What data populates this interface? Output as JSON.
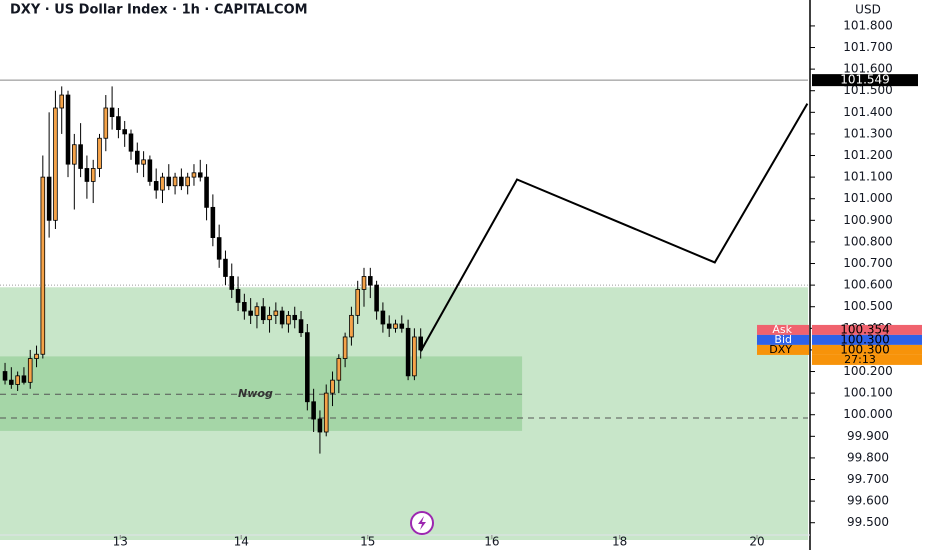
{
  "chart_data": {
    "type": "candlestick",
    "title": "DXY · US Dollar Index · 1h · CAPITALCOM",
    "currency": "USD",
    "up_color": "#f5a349",
    "down_color": "#000000",
    "x": [
      0,
      1,
      2,
      3,
      4,
      5,
      6,
      7,
      8,
      9,
      10,
      11,
      12,
      13,
      14,
      15,
      16,
      17,
      18,
      19,
      20,
      21,
      22,
      23,
      24,
      25,
      26,
      27,
      28,
      29,
      30,
      31,
      32,
      33,
      34,
      35,
      36,
      37,
      38,
      39,
      40,
      41,
      42,
      43,
      44,
      45,
      46,
      47,
      48,
      49,
      50,
      51,
      52,
      53,
      54,
      55,
      56,
      57,
      58,
      59,
      60,
      61,
      62,
      63,
      64,
      65,
      66
    ],
    "open": [
      100.2,
      100.16,
      100.14,
      100.18,
      100.15,
      100.26,
      100.28,
      101.1,
      100.9,
      101.42,
      101.48,
      101.16,
      101.25,
      101.14,
      101.08,
      101.14,
      101.28,
      101.42,
      101.38,
      101.32,
      101.3,
      101.22,
      101.16,
      101.18,
      101.08,
      101.04,
      101.1,
      101.06,
      101.1,
      101.06,
      101.1,
      101.12,
      101.1,
      100.96,
      100.82,
      100.72,
      100.64,
      100.58,
      100.52,
      100.48,
      100.46,
      100.5,
      100.44,
      100.46,
      100.48,
      100.42,
      100.46,
      100.44,
      100.38,
      100.06,
      99.98,
      99.92,
      100.1,
      100.16,
      100.26,
      100.36,
      100.46,
      100.58,
      100.64,
      100.6,
      100.48,
      100.42,
      100.4,
      100.42,
      100.4,
      100.18,
      100.36
    ],
    "high": [
      100.24,
      100.22,
      100.2,
      100.22,
      100.3,
      100.32,
      101.2,
      101.4,
      101.5,
      101.52,
      101.5,
      101.3,
      101.35,
      101.2,
      101.18,
      101.3,
      101.48,
      101.52,
      101.42,
      101.36,
      101.32,
      101.26,
      101.22,
      101.2,
      101.14,
      101.12,
      101.16,
      101.12,
      101.14,
      101.12,
      101.16,
      101.18,
      101.16,
      101.02,
      100.88,
      100.76,
      100.7,
      100.64,
      100.56,
      100.54,
      100.52,
      100.54,
      100.5,
      100.52,
      100.5,
      100.48,
      100.5,
      100.48,
      100.42,
      100.12,
      100.02,
      100.14,
      100.2,
      100.28,
      100.38,
      100.5,
      100.62,
      100.68,
      100.68,
      100.62,
      100.52,
      100.46,
      100.44,
      100.46,
      100.44,
      100.4,
      100.4
    ],
    "low": [
      100.14,
      100.12,
      100.11,
      100.14,
      100.12,
      100.22,
      100.26,
      100.82,
      100.86,
      101.3,
      101.1,
      100.95,
      101.1,
      101.0,
      100.98,
      101.1,
      101.22,
      101.32,
      101.28,
      101.24,
      101.18,
      101.12,
      101.1,
      101.06,
      101.0,
      100.98,
      101.04,
      101.02,
      101.04,
      101.02,
      101.06,
      101.08,
      100.9,
      100.78,
      100.68,
      100.6,
      100.54,
      100.48,
      100.44,
      100.42,
      100.4,
      100.42,
      100.38,
      100.42,
      100.4,
      100.38,
      100.4,
      100.36,
      100.02,
      99.92,
      99.82,
      99.9,
      100.04,
      100.1,
      100.22,
      100.32,
      100.42,
      100.5,
      100.54,
      100.44,
      100.38,
      100.36,
      100.38,
      100.38,
      100.16,
      100.16,
      100.26
    ],
    "close": [
      100.16,
      100.14,
      100.18,
      100.15,
      100.26,
      100.28,
      101.1,
      100.9,
      101.42,
      101.48,
      101.16,
      101.25,
      101.14,
      101.08,
      101.14,
      101.28,
      101.42,
      101.38,
      101.32,
      101.3,
      101.22,
      101.16,
      101.18,
      101.08,
      101.04,
      101.1,
      101.06,
      101.1,
      101.06,
      101.1,
      101.12,
      101.1,
      100.96,
      100.82,
      100.72,
      100.64,
      100.58,
      100.52,
      100.48,
      100.46,
      100.5,
      100.44,
      100.46,
      100.48,
      100.42,
      100.46,
      100.44,
      100.38,
      100.06,
      99.98,
      99.92,
      100.1,
      100.16,
      100.26,
      100.36,
      100.46,
      100.58,
      100.64,
      100.6,
      100.48,
      100.42,
      100.4,
      100.42,
      100.4,
      100.18,
      100.36,
      100.3
    ],
    "xlim": [
      -0.8,
      127.5
    ],
    "ylim": [
      99.42,
      101.92
    ],
    "xticks": [
      {
        "value": 18.3,
        "label": "13"
      },
      {
        "value": 37.5,
        "label": "14"
      },
      {
        "value": 57.6,
        "label": "15"
      },
      {
        "value": 77.3,
        "label": "16"
      },
      {
        "value": 97.6,
        "label": "18"
      },
      {
        "value": 119.4,
        "label": "20"
      }
    ],
    "yticks": [
      {
        "value": 101.8,
        "label": "101.800"
      },
      {
        "value": 101.7,
        "label": "101.700"
      },
      {
        "value": 101.6,
        "label": "101.600"
      },
      {
        "value": 101.5,
        "label": "101.500"
      },
      {
        "value": 101.4,
        "label": "101.400"
      },
      {
        "value": 101.3,
        "label": "101.300"
      },
      {
        "value": 101.2,
        "label": "101.200"
      },
      {
        "value": 101.1,
        "label": "101.100"
      },
      {
        "value": 101.0,
        "label": "101.000"
      },
      {
        "value": 100.9,
        "label": "100.900"
      },
      {
        "value": 100.8,
        "label": "100.800"
      },
      {
        "value": 100.7,
        "label": "100.700"
      },
      {
        "value": 100.6,
        "label": "100.600"
      },
      {
        "value": 100.5,
        "label": "100.500"
      },
      {
        "value": 100.4,
        "label": "100.400"
      },
      {
        "value": 100.3,
        "label": "100.300"
      },
      {
        "value": 100.2,
        "label": "100.200"
      },
      {
        "value": 100.1,
        "label": "100.100"
      },
      {
        "value": 100.0,
        "label": "100.000"
      },
      {
        "value": 99.9,
        "label": "99.900"
      },
      {
        "value": 99.8,
        "label": "99.800"
      },
      {
        "value": 99.7,
        "label": "99.700"
      },
      {
        "value": 99.6,
        "label": "99.600"
      },
      {
        "value": 99.5,
        "label": "99.500"
      }
    ],
    "high_line": {
      "value": 101.549,
      "label": "101.549"
    },
    "price_tags": [
      {
        "name": "Ask",
        "value": 100.354,
        "label": "100.354",
        "color": "#f0626e"
      },
      {
        "name": "Bid",
        "value": 100.3,
        "label": "100.300",
        "color": "#2e62e8"
      },
      {
        "name": "DXY",
        "value": 100.3,
        "label": "100.300",
        "color": "#f7930a",
        "countdown": "27:13"
      }
    ],
    "zones": [
      {
        "top": 100.59,
        "color": "#c8e6c9"
      },
      {
        "top": 100.27,
        "bottom": 99.925,
        "x_end": 82.1,
        "color": "#a5d6a7"
      }
    ],
    "levels": [
      {
        "value": 100.6,
        "style": "dotted"
      },
      {
        "value": 100.095,
        "style": "dashed",
        "x_end": 82.1,
        "label": "Nwog",
        "label_x": 37
      },
      {
        "value": 99.985,
        "style": "dashed"
      }
    ],
    "projection": {
      "x": [
        66,
        81.3,
        112.7,
        127.4
      ],
      "y": [
        100.294,
        101.089,
        100.705,
        101.44
      ]
    }
  }
}
